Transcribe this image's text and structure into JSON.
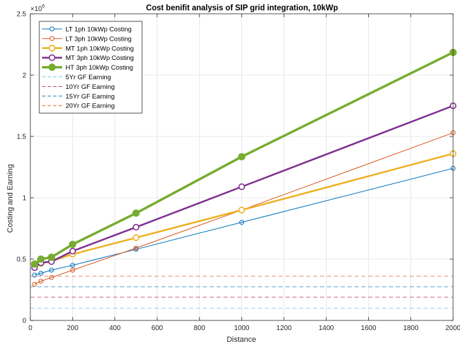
{
  "chart_data": {
    "type": "line",
    "title": "Cost benifit analysis of SIP grid integration, 10kWp",
    "xlabel": "Distance",
    "ylabel": "Costing and Earning",
    "y_exponent_label": "×10",
    "y_exponent_power": "6",
    "xlim": [
      0,
      2000
    ],
    "ylim": [
      0,
      2.5
    ],
    "xticks": [
      0,
      200,
      400,
      600,
      800,
      1000,
      1200,
      1400,
      1600,
      1800,
      2000
    ],
    "yticks": [
      0,
      0.5,
      1,
      1.5,
      2,
      2.5
    ],
    "xtick_labels": [
      "0",
      "200",
      "400",
      "600",
      "800",
      "1000",
      "1200",
      "1400",
      "1600",
      "1800",
      "2000"
    ],
    "ytick_labels": [
      "0",
      "0.5",
      "1",
      "1.5",
      "2",
      "2.5"
    ],
    "grid": true,
    "legend_position": "top-left",
    "x": [
      20,
      50,
      100,
      200,
      500,
      1000,
      2000
    ],
    "series": [
      {
        "name": "LT 1ph 10kWp Costing",
        "color": "#0072BD",
        "style": "solid",
        "width": 1,
        "marker": "circle",
        "marker_size": 3,
        "marker_fill": "none",
        "values": [
          0.37,
          0.385,
          0.41,
          0.45,
          0.58,
          0.8,
          1.24
        ]
      },
      {
        "name": "LT 3ph 10kWp Costing",
        "color": "#D95319",
        "style": "solid",
        "width": 1,
        "marker": "circle",
        "marker_size": 3,
        "marker_fill": "none",
        "values": [
          0.295,
          0.32,
          0.35,
          0.41,
          0.59,
          0.9,
          1.53
        ]
      },
      {
        "name": "MT 1ph 10kWp Costing",
        "color": "#EDB120",
        "style": "solid",
        "width": 2.5,
        "marker": "circle",
        "marker_size": 4,
        "marker_fill": "#ffffff",
        "values": [
          0.445,
          0.465,
          0.485,
          0.54,
          0.675,
          0.9,
          1.36
        ]
      },
      {
        "name": "MT 3ph 10kWp Costing",
        "color": "#7E2F8E",
        "style": "solid",
        "width": 2.5,
        "marker": "circle",
        "marker_size": 4,
        "marker_fill": "#ffffff",
        "values": [
          0.43,
          0.47,
          0.48,
          0.565,
          0.76,
          1.09,
          1.75
        ]
      },
      {
        "name": "HT 3ph 10kWp Costing",
        "color": "#77AC30",
        "style": "solid",
        "width": 3.5,
        "marker": "circle",
        "marker_size": 4.5,
        "marker_fill": "#77AC30",
        "values": [
          0.46,
          0.5,
          0.515,
          0.62,
          0.875,
          1.335,
          2.185
        ]
      },
      {
        "name": "5Yr GF Earning",
        "color": "#4DBEEE",
        "style": "dashed",
        "width": 0.8,
        "marker": "none",
        "constant": 0.1
      },
      {
        "name": "10Yr GF Earning",
        "color": "#A2142F",
        "style": "dashed",
        "width": 0.8,
        "marker": "none",
        "constant": 0.19
      },
      {
        "name": "15Yr GF Earning",
        "color": "#0072BD",
        "style": "dashed",
        "width": 0.8,
        "marker": "none",
        "constant": 0.275
      },
      {
        "name": "20Yr GF Earning",
        "color": "#D95319",
        "style": "dashed",
        "width": 0.8,
        "marker": "none",
        "constant": 0.36
      }
    ]
  }
}
